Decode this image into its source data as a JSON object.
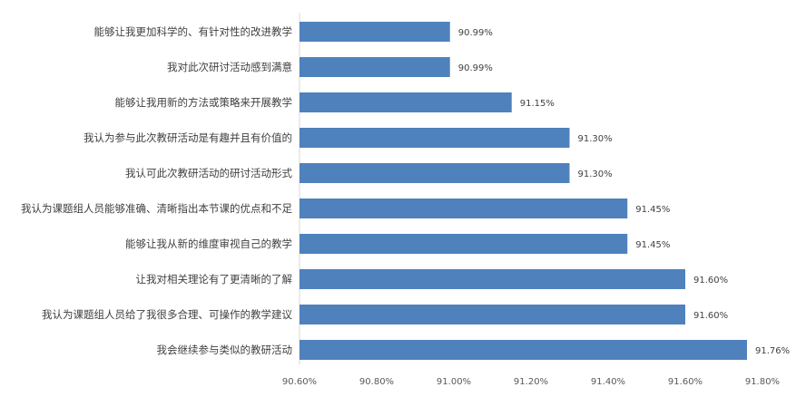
{
  "chart_data": {
    "type": "bar",
    "orientation": "horizontal",
    "categories": [
      "能够让我更加科学的、有针对性的改进教学",
      "我对此次研讨活动感到满意",
      "能够让我用新的方法或策略来开展教学",
      "我认为参与此次教研活动是有趣并且有价值的",
      "我认可此次教研活动的研讨活动形式",
      "我认为课题组人员能够准确、清晰指出本节课的优点和不足",
      "能够让我从新的维度审视自己的教学",
      "让我对相关理论有了更清晰的了解",
      "我认为课题组人员给了我很多合理、可操作的教学建议",
      "我会继续参与类似的教研活动"
    ],
    "values": [
      90.99,
      90.99,
      91.15,
      91.3,
      91.3,
      91.45,
      91.45,
      91.6,
      91.6,
      91.76
    ],
    "value_labels": [
      "90.99%",
      "90.99%",
      "91.15%",
      "91.30%",
      "91.30%",
      "91.45%",
      "91.45%",
      "91.60%",
      "91.60%",
      "91.76%"
    ],
    "xlim": [
      90.6,
      91.8
    ],
    "x_ticks": [
      90.6,
      90.8,
      91.0,
      91.2,
      91.4,
      91.6,
      91.8
    ],
    "x_tick_labels": [
      "90.60%",
      "90.80%",
      "91.00%",
      "91.20%",
      "91.40%",
      "91.60%",
      "91.80%"
    ],
    "bar_color": "#4F81BD",
    "grid": false,
    "legend": "none"
  }
}
